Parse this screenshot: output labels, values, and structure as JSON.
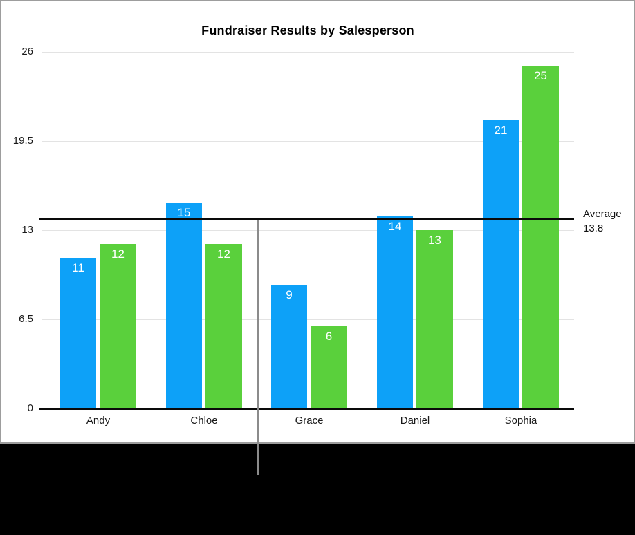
{
  "chart_data": {
    "type": "bar",
    "title": "Fundraiser Results by Salesperson",
    "categories": [
      "Andy",
      "Chloe",
      "Grace",
      "Daniel",
      "Sophia"
    ],
    "series": [
      {
        "name": "blue",
        "color": "#0da1f8",
        "values": [
          11,
          15,
          9,
          14,
          21
        ]
      },
      {
        "name": "green",
        "color": "#5ad03c",
        "values": [
          12,
          12,
          6,
          13,
          25
        ]
      }
    ],
    "y_ticks": [
      0,
      6.5,
      13,
      19.5,
      26
    ],
    "ylim": [
      0,
      26
    ],
    "xlabel": "",
    "ylabel": "",
    "grid": true,
    "legend": "none",
    "value_labels": "inside-top-white",
    "average_line": {
      "value": 13.8,
      "label": "Average",
      "value_text": "13.8",
      "color": "#0a0a0a"
    }
  }
}
